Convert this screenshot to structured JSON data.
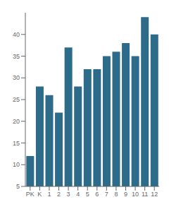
{
  "chart_data": {
    "type": "bar",
    "categories": [
      "PK",
      "K",
      "1",
      "2",
      "3",
      "4",
      "5",
      "6",
      "7",
      "8",
      "9",
      "10",
      "11",
      "12"
    ],
    "values": [
      12,
      28,
      26,
      22,
      37,
      28,
      32,
      32,
      35,
      36,
      38,
      35,
      44,
      40
    ],
    "color": "#2d6b8a",
    "ylim": [
      5,
      45
    ],
    "yticks": [
      5,
      10,
      15,
      20,
      25,
      30,
      35,
      40
    ],
    "grid": false
  }
}
